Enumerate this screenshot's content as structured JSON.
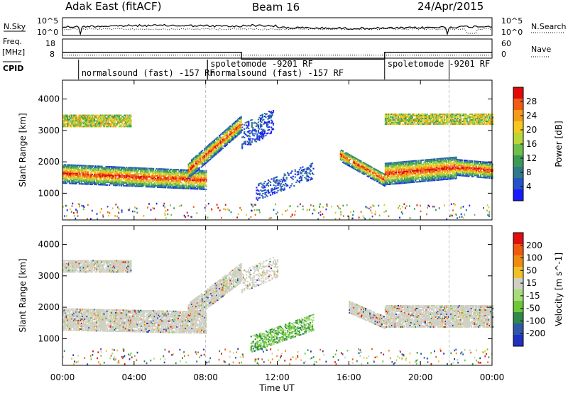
{
  "header": {
    "station": "Adak East (fitACF)",
    "beam": "Beam 16",
    "date": "24/Apr/2015"
  },
  "noise_panel": {
    "left_label": "N.Sky",
    "left_ticks": [
      "10^5",
      "10^0"
    ],
    "right_label": "N.Search",
    "right_ticks": [
      "10^5",
      "10^0"
    ]
  },
  "freq_panel": {
    "left_label": "Freq.",
    "left_unit": "[MHz]",
    "left_ticks": [
      "18",
      "8"
    ],
    "right_label": "Nave",
    "right_ticks": [
      "60",
      "0"
    ]
  },
  "cpid": {
    "label": "CPID",
    "segments": [
      {
        "start_hour": 0.9,
        "end_hour": 8.1,
        "text": "normalsound (fast) -157 RF",
        "row": 2
      },
      {
        "start_hour": 8.1,
        "end_hour": 10.0,
        "text": "spoletomode -9201 RF",
        "row": 1
      },
      {
        "start_hour": 8.1,
        "end_hour": 18.0,
        "text": "normalsound (fast) -157 RF",
        "row": 2
      },
      {
        "start_hour": 18.0,
        "end_hour": 21.6,
        "text": "spoletomode -9201 RF",
        "row": 1
      }
    ]
  },
  "chart_data": [
    {
      "type": "heatmap",
      "name": "power",
      "ylabel": "Slant Range [km]",
      "ylim": [
        150,
        4600
      ],
      "yticks": [
        1000,
        2000,
        3000,
        4000
      ],
      "colorbar_label": "Power [dB]",
      "colorbar_ticks": [
        "4",
        "8",
        "12",
        "16",
        "20",
        "24",
        "28"
      ],
      "colorbar_colors": [
        "#1a1aff",
        "#2454c8",
        "#2f7a8a",
        "#3a9a56",
        "#6ec04a",
        "#b9d63a",
        "#f4c81e",
        "#f59c16",
        "#ef5c14",
        "#e00a0a"
      ],
      "echo_regions": [
        {
          "t0": 0.0,
          "t1": 8.0,
          "r_start": 1600,
          "r_end": 1400,
          "width": 600,
          "kind": "band"
        },
        {
          "t0": 0.0,
          "t1": 3.8,
          "r_start": 3300,
          "r_end": 3300,
          "width": 400,
          "kind": "patch"
        },
        {
          "t0": 7.0,
          "t1": 10.0,
          "r_start": 1700,
          "r_end": 3200,
          "width": 500,
          "kind": "band"
        },
        {
          "t0": 10.0,
          "t1": 11.8,
          "r_start": 2800,
          "r_end": 3300,
          "width": 800,
          "kind": "scatter"
        },
        {
          "t0": 10.8,
          "t1": 14.0,
          "r_start": 1000,
          "r_end": 1700,
          "width": 500,
          "kind": "scatter"
        },
        {
          "t0": 15.5,
          "t1": 18.0,
          "r_start": 2200,
          "r_end": 1400,
          "width": 400,
          "kind": "band"
        },
        {
          "t0": 18.0,
          "t1": 22.0,
          "r_start": 1600,
          "r_end": 1800,
          "width": 700,
          "kind": "band"
        },
        {
          "t0": 22.0,
          "t1": 24.0,
          "r_start": 1800,
          "r_end": 1700,
          "width": 500,
          "kind": "band"
        },
        {
          "t0": 18.0,
          "t1": 24.0,
          "r_start": 3350,
          "r_end": 3350,
          "width": 350,
          "kind": "patch"
        }
      ]
    },
    {
      "type": "heatmap",
      "name": "velocity",
      "ylabel": "Slant Range [km]",
      "ylim": [
        150,
        4600
      ],
      "yticks": [
        1000,
        2000,
        3000,
        4000
      ],
      "colorbar_label": "Velocity [m s^-1]",
      "colorbar_ticks": [
        "200",
        "100",
        "50",
        "15",
        "-15",
        "-50",
        "-100",
        "-200"
      ],
      "colorbar_colors": [
        "#2030c0",
        "#3058a8",
        "#2f8a4a",
        "#6cc838",
        "#a8dc78",
        "#cfcfc4",
        "#f0c028",
        "#f08a10",
        "#f05a10",
        "#e01010"
      ],
      "echo_regions": [
        {
          "t0": 0.0,
          "t1": 8.0,
          "r_start": 1600,
          "r_end": 1500,
          "width": 700,
          "kind": "band"
        },
        {
          "t0": 0.0,
          "t1": 3.8,
          "r_start": 3300,
          "r_end": 3300,
          "width": 400,
          "kind": "patch"
        },
        {
          "t0": 7.0,
          "t1": 10.0,
          "r_start": 1800,
          "r_end": 3100,
          "width": 600,
          "kind": "band"
        },
        {
          "t0": 10.0,
          "t1": 12.0,
          "r_start": 2800,
          "r_end": 3300,
          "width": 700,
          "kind": "scatter"
        },
        {
          "t0": 10.5,
          "t1": 14.0,
          "r_start": 800,
          "r_end": 1500,
          "width": 500,
          "kind": "green"
        },
        {
          "t0": 16.0,
          "t1": 18.0,
          "r_start": 2000,
          "r_end": 1500,
          "width": 400,
          "kind": "band"
        },
        {
          "t0": 18.0,
          "t1": 24.0,
          "r_start": 1700,
          "r_end": 1700,
          "width": 700,
          "kind": "band"
        }
      ]
    }
  ],
  "x_axis": {
    "label": "Time UT",
    "ticks": [
      "00:00",
      "04:00",
      "08:00",
      "12:00",
      "16:00",
      "20:00",
      "00:00"
    ],
    "tick_hours": [
      0,
      4,
      8,
      12,
      16,
      20,
      24
    ]
  }
}
